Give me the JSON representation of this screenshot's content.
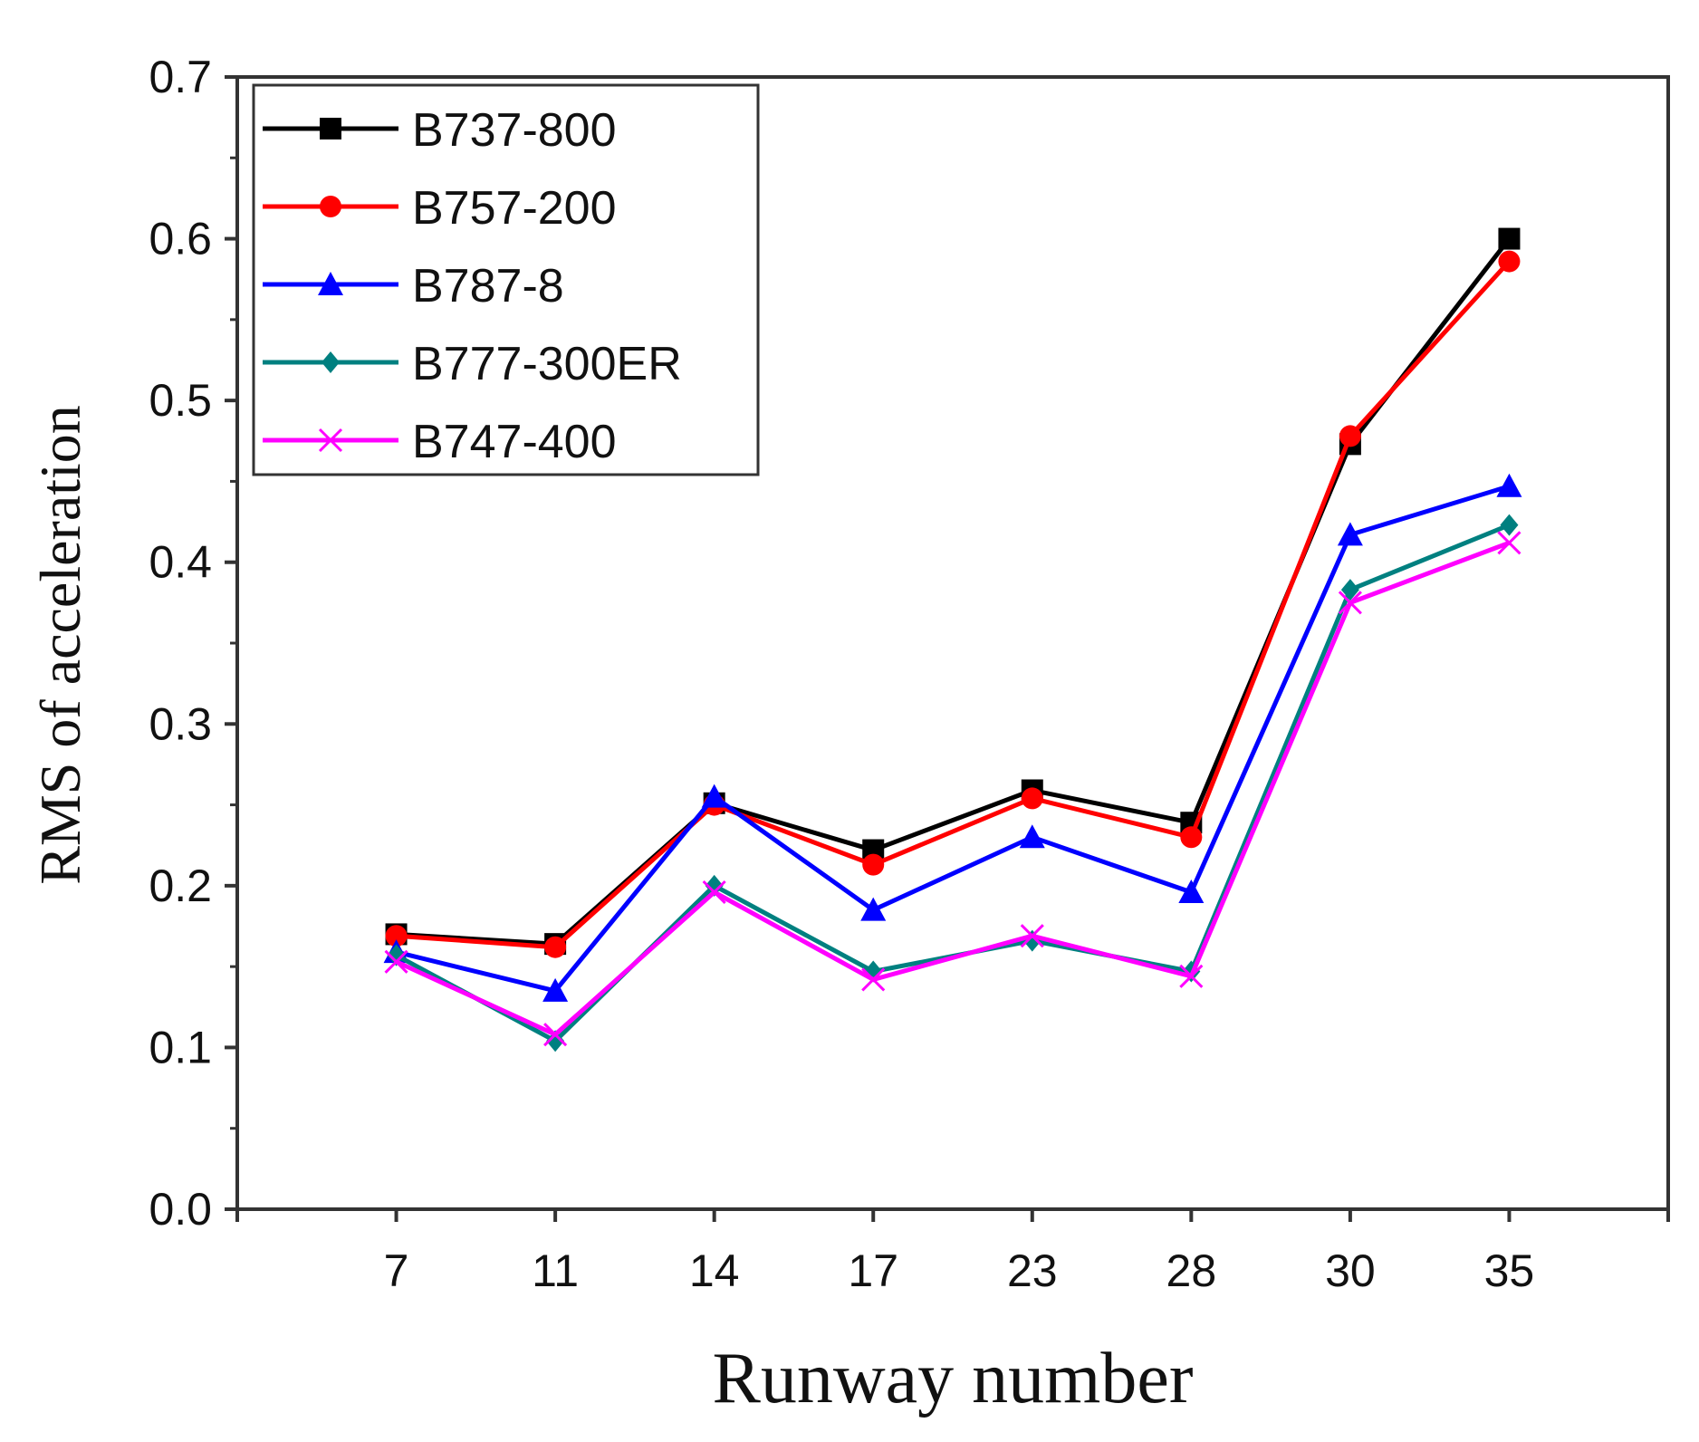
{
  "chart_data": {
    "type": "line",
    "title": "",
    "xlabel": "Runway number",
    "ylabel": "RMS of acceleration",
    "categories": [
      "7",
      "11",
      "14",
      "17",
      "23",
      "28",
      "30",
      "35"
    ],
    "ylim": [
      0.0,
      0.7
    ],
    "yticks": [
      "0.0",
      "0.1",
      "0.2",
      "0.3",
      "0.4",
      "0.5",
      "0.6",
      "0.7"
    ],
    "legend_position": "top-left",
    "grid": false,
    "series": [
      {
        "name": "B737-800",
        "color": "#000000",
        "marker": "square",
        "values": [
          0.17,
          0.164,
          0.251,
          0.222,
          0.259,
          0.239,
          0.473,
          0.6
        ]
      },
      {
        "name": "B757-200",
        "color": "#ff0000",
        "marker": "circle",
        "values": [
          0.169,
          0.162,
          0.25,
          0.213,
          0.254,
          0.23,
          0.478,
          0.586
        ]
      },
      {
        "name": "B787-8",
        "color": "#0000ff",
        "marker": "triangle",
        "values": [
          0.159,
          0.135,
          0.255,
          0.185,
          0.23,
          0.196,
          0.417,
          0.447
        ]
      },
      {
        "name": "B777-300ER",
        "color": "#008080",
        "marker": "diamond",
        "values": [
          0.157,
          0.104,
          0.2,
          0.147,
          0.166,
          0.147,
          0.383,
          0.423
        ]
      },
      {
        "name": "B747-400",
        "color": "#ff00ff",
        "marker": "cross",
        "values": [
          0.153,
          0.108,
          0.196,
          0.142,
          0.169,
          0.144,
          0.375,
          0.412
        ]
      }
    ]
  }
}
